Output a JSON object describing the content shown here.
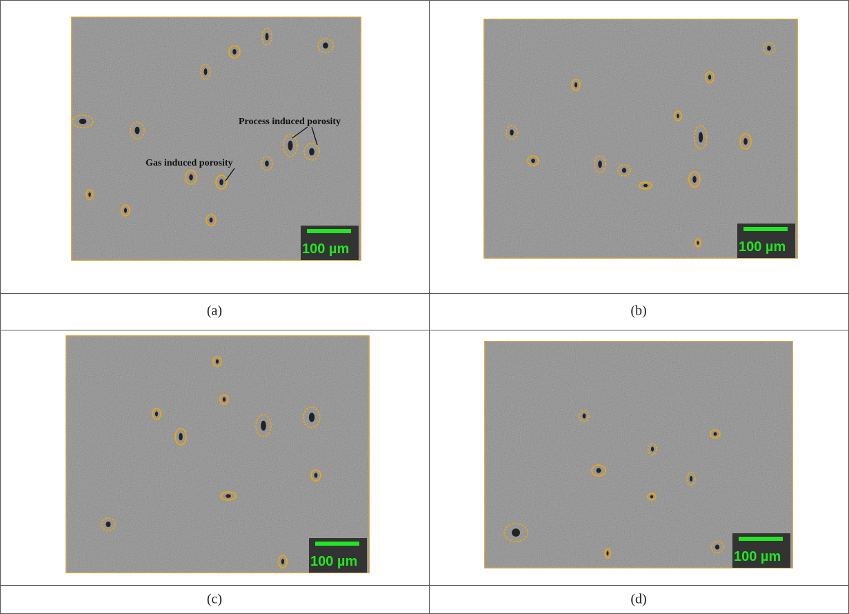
{
  "figure": {
    "panels": [
      {
        "label": "(a)",
        "scale_bar": "100 µm",
        "annotations": [
          "Process induced porosity",
          "Gas induced porosity"
        ]
      },
      {
        "label": "(b)",
        "scale_bar": "100 µm"
      },
      {
        "label": "(c)",
        "scale_bar": "100 µm"
      },
      {
        "label": "(d)",
        "scale_bar": "100 µm"
      }
    ]
  }
}
